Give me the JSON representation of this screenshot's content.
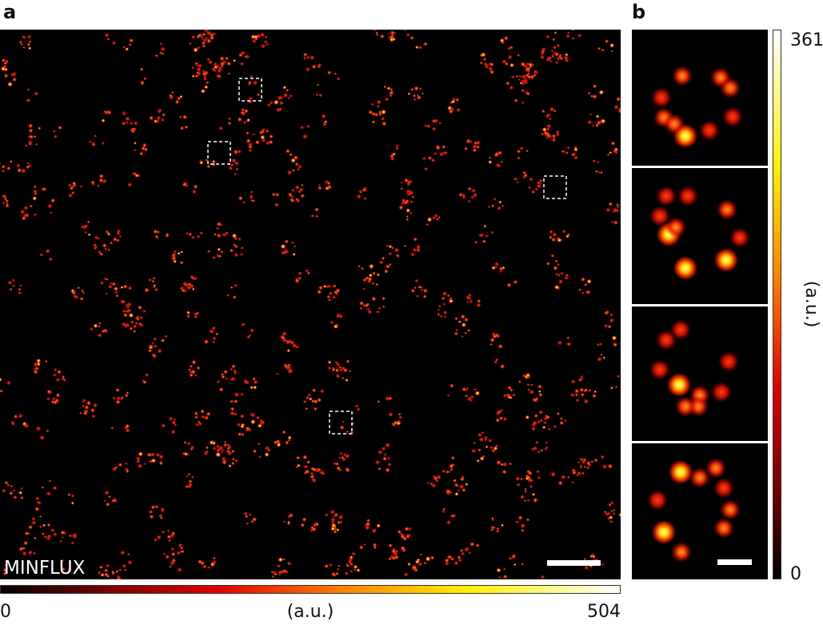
{
  "panels": {
    "a": {
      "label": "a",
      "overlay_label": "MINFLUX",
      "colorbar": {
        "min": 0,
        "axis_label": "(a.u.)",
        "max": 504
      }
    },
    "b": {
      "label": "b",
      "colorbar": {
        "max": 361,
        "axis_label": "(a.u.)",
        "min": 0
      }
    }
  }
}
